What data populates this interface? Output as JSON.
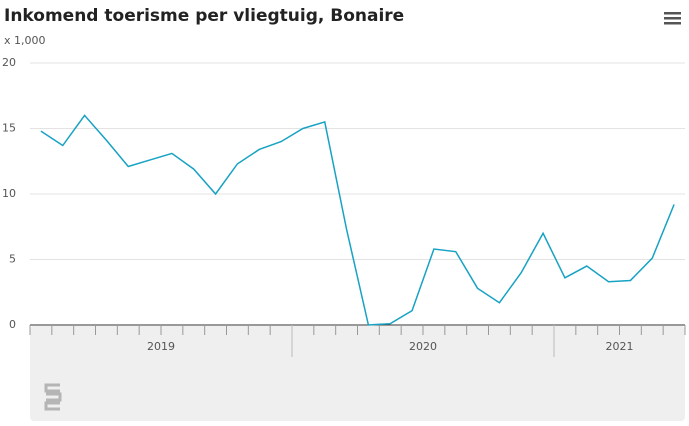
{
  "chart_data": {
    "type": "line",
    "title": "Inkomend toerisme per vliegtuig, Bonaire",
    "y_unit": "x 1,000",
    "categories": [
      "2019",
      null,
      null,
      null,
      null,
      null,
      null,
      null,
      null,
      null,
      null,
      null,
      "2020",
      null,
      null,
      null,
      null,
      null,
      null,
      null,
      null,
      null,
      null,
      null,
      "2021",
      null,
      null,
      null,
      null,
      null
    ],
    "series": [
      {
        "name": "Inkomend toerisme",
        "color": "#17a2c4",
        "values": [
          14.8,
          13.7,
          16.0,
          14.1,
          12.1,
          12.6,
          13.1,
          11.9,
          10.0,
          12.3,
          13.4,
          14.0,
          15.0,
          15.5,
          7.3,
          0,
          0.1,
          1.1,
          5.8,
          5.6,
          2.8,
          1.7,
          4.0,
          7.0,
          3.6,
          4.5,
          3.3,
          3.4,
          5.1,
          9.2
        ]
      }
    ],
    "ylim": [
      0,
      20
    ],
    "yticks": [
      0,
      5,
      10,
      15,
      20
    ],
    "grid": true
  }
}
